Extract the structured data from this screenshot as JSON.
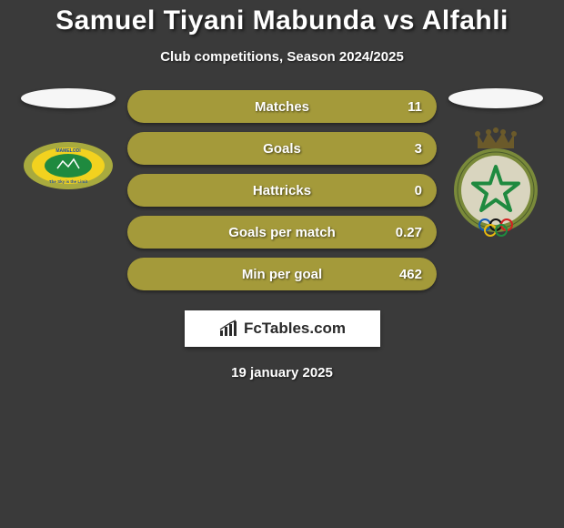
{
  "title": "Samuel Tiyani Mabunda vs Alfahli",
  "subtitle": "Club competitions, Season 2024/2025",
  "date": "19 january 2025",
  "brand": "FcTables.com",
  "colors": {
    "bar_bg": "#a49a3a",
    "bar_fill_left": "#7a7426",
    "text": "#ffffff",
    "background": "#3a3a3a",
    "brand_bg": "#ffffff",
    "brand_text": "#2a2a2a"
  },
  "stats": [
    {
      "label": "Matches",
      "value": "11",
      "fill_pct": 0
    },
    {
      "label": "Goals",
      "value": "3",
      "fill_pct": 0
    },
    {
      "label": "Hattricks",
      "value": "0",
      "fill_pct": 0
    },
    {
      "label": "Goals per match",
      "value": "0.27",
      "fill_pct": 0
    },
    {
      "label": "Min per goal",
      "value": "462",
      "fill_pct": 0
    }
  ],
  "left_team": {
    "name": "Mamelodi Sundowns",
    "tagline": "The Sky is the Limit",
    "logo_colors": {
      "outer": "#a8aa3e",
      "band": "#f2d21f",
      "inner": "#1f8a3f",
      "text": "#1e4fa3"
    }
  },
  "right_team": {
    "name": "FAR Rabat",
    "logo_colors": {
      "crown": "#6b5a2a",
      "ring": "#7a8a3a",
      "star": "#1f8a3f",
      "inner": "#d9d5bf"
    }
  }
}
